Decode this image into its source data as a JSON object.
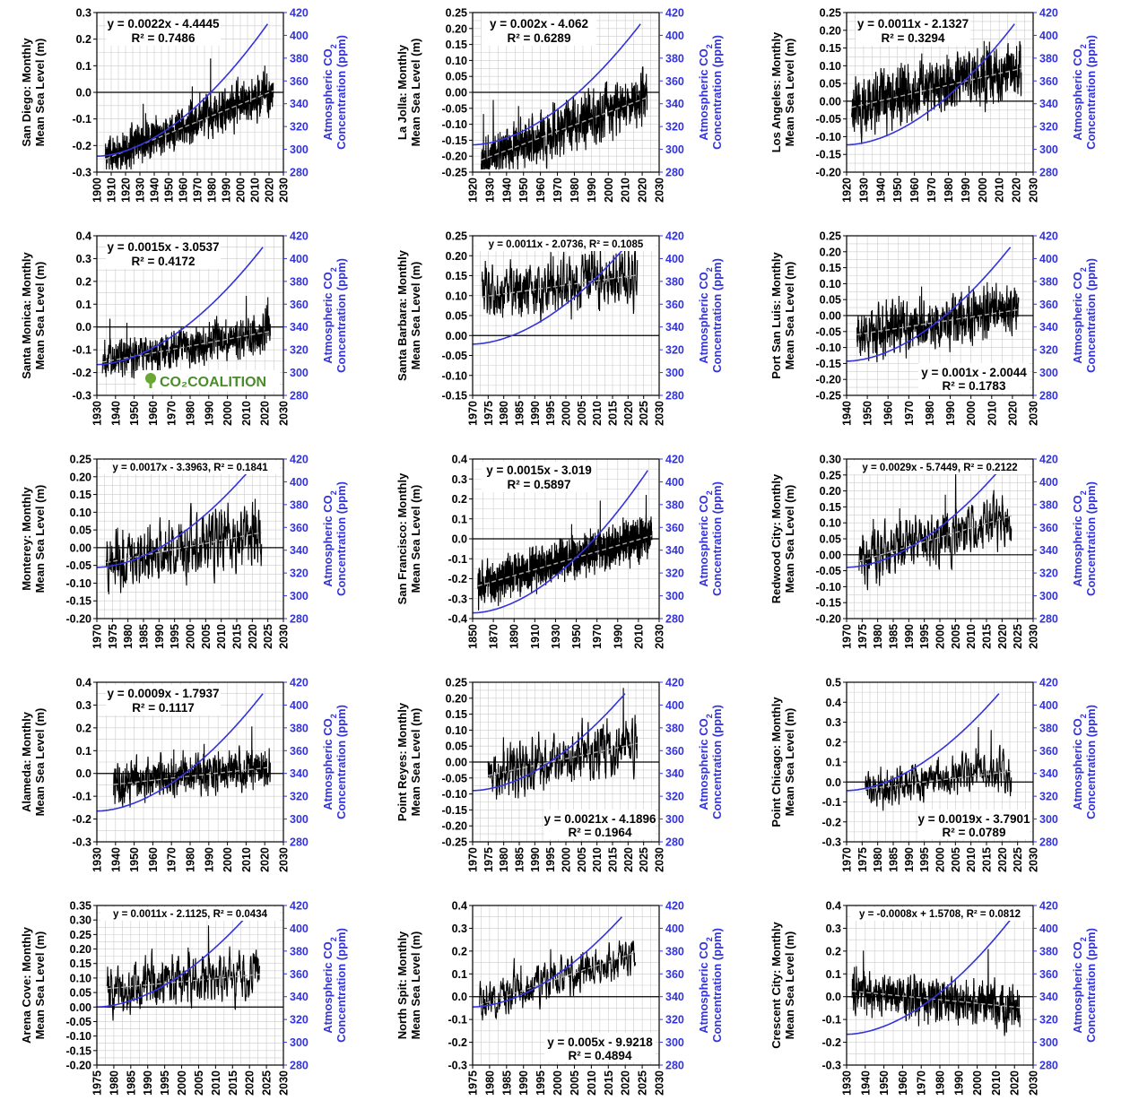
{
  "chart_data": [
    {
      "type": "line",
      "ylabel": "San Diego: Monthly\nMean Sea Level (m)",
      "y2label": "Atmospheric CO2\nConcentration (ppm)",
      "xlim": [
        1900,
        2030
      ],
      "xstep": 10,
      "ylim": [
        -0.3,
        0.3
      ],
      "ystep": 0.1,
      "ydec": 1,
      "y2lim": [
        280,
        420
      ],
      "y2step": 20,
      "data_x": [
        1906,
        2023
      ],
      "trend_slope": 0.0022,
      "trend_intercept": -4.4445,
      "equation": "y = 0.0022x - 4.4445",
      "r2": "R² = 0.7486",
      "eq_pos": "top-left",
      "co2_start": [
        1900,
        294
      ],
      "co2_end": [
        2019,
        410
      ],
      "noise": 0.045,
      "grid": true,
      "seed": 1
    },
    {
      "type": "line",
      "ylabel": "La Jolla: Monthly\nMean Sea Level (m)",
      "y2label": "Atmospheric CO2\nConcentration (ppm)",
      "xlim": [
        1920,
        2030
      ],
      "xstep": 10,
      "ylim": [
        -0.25,
        0.25
      ],
      "ystep": 0.05,
      "ydec": 2,
      "y2lim": [
        280,
        420
      ],
      "y2step": 20,
      "data_x": [
        1925,
        2023
      ],
      "trend_slope": 0.002,
      "trend_intercept": -4.062,
      "equation": "y = 0.002x - 4.062",
      "r2": "R² = 0.6289",
      "eq_pos": "top-left",
      "co2_start": [
        1920,
        304
      ],
      "co2_end": [
        2019,
        410
      ],
      "noise": 0.045,
      "grid": true,
      "seed": 2
    },
    {
      "type": "line",
      "ylabel": "Los Angeles: Monthly\nMean Sea Level (m)",
      "y2label": "Atmospheric CO2\nConcentration (ppm)",
      "xlim": [
        1920,
        2030
      ],
      "xstep": 10,
      "ylim": [
        -0.2,
        0.25
      ],
      "ystep": 0.05,
      "ydec": 2,
      "y2lim": [
        280,
        420
      ],
      "y2step": 20,
      "data_x": [
        1923,
        2023
      ],
      "trend_slope": 0.0011,
      "trend_intercept": -2.1327,
      "equation": "y = 0.0011x - 2.1327",
      "r2": "R² = 0.3294",
      "eq_pos": "top-left",
      "co2_start": [
        1920,
        304
      ],
      "co2_end": [
        2019,
        410
      ],
      "noise": 0.045,
      "grid": true,
      "seed": 3
    },
    {
      "type": "line",
      "ylabel": "Santa Monica: Monthly\nMean Sea Level (m)",
      "y2label": "Atmospheric CO2\nConcentration (ppm)",
      "xlim": [
        1930,
        2030
      ],
      "xstep": 10,
      "ylim": [
        -0.3,
        0.4
      ],
      "ystep": 0.1,
      "ydec": 1,
      "y2lim": [
        280,
        420
      ],
      "y2step": 20,
      "data_x": [
        1933,
        2023
      ],
      "trend_slope": 0.0015,
      "trend_intercept": -3.0537,
      "equation": "y = 0.0015x - 3.0537",
      "r2": "R² = 0.4172",
      "eq_pos": "top-left",
      "co2_start": [
        1930,
        307
      ],
      "co2_end": [
        2019,
        410
      ],
      "noise": 0.05,
      "grid": true,
      "seed": 4,
      "logo": "CO2COALITION"
    },
    {
      "type": "line",
      "ylabel": "Santa Barbara: Monthly\nMean Sea Level (m)",
      "y2label": "Atmospheric CO2\nConcentration (ppm)",
      "xlim": [
        1970,
        2030
      ],
      "xstep": 5,
      "ylim": [
        -0.15,
        0.25
      ],
      "ystep": 0.05,
      "ydec": 2,
      "y2lim": [
        280,
        420
      ],
      "y2step": 20,
      "data_x": [
        1973,
        2023
      ],
      "trend_slope": 0.0011,
      "trend_intercept": -2.0736,
      "equation": "y = 0.0011x - 2.0736, R² = 0.1085",
      "r2": "",
      "eq_pos": "top-wide",
      "co2_start": [
        1970,
        325
      ],
      "co2_end": [
        2019,
        410
      ],
      "noise": 0.045,
      "grid": true,
      "seed": 5
    },
    {
      "type": "line",
      "ylabel": "Port San Luis: Monthly\nMean Sea Level (m)",
      "y2label": "Atmospheric CO2\nConcentration (ppm)",
      "xlim": [
        1940,
        2030
      ],
      "xstep": 10,
      "ylim": [
        -0.25,
        0.25
      ],
      "ystep": 0.05,
      "ydec": 2,
      "y2lim": [
        280,
        420
      ],
      "y2step": 20,
      "data_x": [
        1945,
        2023
      ],
      "trend_slope": 0.001,
      "trend_intercept": -2.0044,
      "equation": "y = 0.001x - 2.0044",
      "r2": "R² = 0.1783",
      "eq_pos": "bottom-right",
      "co2_start": [
        1940,
        310
      ],
      "co2_end": [
        2019,
        410
      ],
      "noise": 0.045,
      "grid": true,
      "seed": 6
    },
    {
      "type": "line",
      "ylabel": "Monterey: Monthly\nMean Sea Level (m)",
      "y2label": "Atmospheric CO2\nConcentration (ppm)",
      "xlim": [
        1970,
        2030
      ],
      "xstep": 5,
      "ylim": [
        -0.2,
        0.25
      ],
      "ystep": 0.05,
      "ydec": 2,
      "y2lim": [
        280,
        420
      ],
      "y2step": 20,
      "data_x": [
        1973,
        2023
      ],
      "trend_slope": 0.0017,
      "trend_intercept": -3.3963,
      "equation": "y = 0.0017x - 3.3963, R² = 0.1841",
      "r2": "",
      "eq_pos": "top-wide",
      "co2_start": [
        1970,
        325
      ],
      "co2_end": [
        2019,
        410
      ],
      "noise": 0.05,
      "grid": true,
      "seed": 7
    },
    {
      "type": "line",
      "ylabel": "San Francisco: Monthly\nMean Sea Level (m)",
      "y2label": "Atmospheric CO2\nConcentration (ppm)",
      "xlim": [
        1850,
        2030
      ],
      "xstep": 20,
      "ylim": [
        -0.4,
        0.4
      ],
      "ystep": 0.1,
      "ydec": 1,
      "y2lim": [
        280,
        420
      ],
      "y2step": 20,
      "data_x": [
        1855,
        2023
      ],
      "trend_slope": 0.0015,
      "trend_intercept": -3.019,
      "equation": "y = 0.0015x - 3.019",
      "r2": "R² = 0.5897",
      "eq_pos": "top-left",
      "co2_start": [
        1850,
        285
      ],
      "co2_end": [
        2019,
        410
      ],
      "noise": 0.06,
      "grid": true,
      "seed": 8
    },
    {
      "type": "line",
      "ylabel": "Redwood City: Monthly\nMean Sea Level (m)",
      "y2label": "Atmospheric CO2\nConcentration (ppm)",
      "xlim": [
        1970,
        2030
      ],
      "xstep": 5,
      "ylim": [
        -0.2,
        0.3
      ],
      "ystep": 0.05,
      "ydec": 2,
      "y2lim": [
        280,
        420
      ],
      "y2step": 20,
      "data_x": [
        1974,
        2023
      ],
      "trend_slope": 0.0029,
      "trend_intercept": -5.7449,
      "equation": "y = 0.0029x - 5.7449, R² = 0.2122",
      "r2": "",
      "eq_pos": "top-wide",
      "co2_start": [
        1970,
        325
      ],
      "co2_end": [
        2019,
        410
      ],
      "noise": 0.05,
      "grid": true,
      "seed": 9
    },
    {
      "type": "line",
      "ylabel": "Alameda: Monthly\nMean Sea Level (m)",
      "y2label": "Atmospheric CO2\nConcentration (ppm)",
      "xlim": [
        1930,
        2030
      ],
      "xstep": 10,
      "ylim": [
        -0.3,
        0.4
      ],
      "ystep": 0.1,
      "ydec": 1,
      "y2lim": [
        280,
        420
      ],
      "y2step": 20,
      "data_x": [
        1939,
        2023
      ],
      "trend_slope": 0.0009,
      "trend_intercept": -1.7937,
      "equation": "y = 0.0009x - 1.7937",
      "r2": "R² = 0.1117",
      "eq_pos": "top-left",
      "co2_start": [
        1930,
        307
      ],
      "co2_end": [
        2019,
        410
      ],
      "noise": 0.05,
      "grid": true,
      "seed": 10
    },
    {
      "type": "line",
      "ylabel": "Point Reyes: Monthly\nMean Sea Level (m)",
      "y2label": "Atmospheric CO2\nConcentration (ppm)",
      "xlim": [
        1970,
        2030
      ],
      "xstep": 5,
      "ylim": [
        -0.25,
        0.25
      ],
      "ystep": 0.05,
      "ydec": 2,
      "y2lim": [
        280,
        420
      ],
      "y2step": 20,
      "data_x": [
        1975,
        2023
      ],
      "trend_slope": 0.0021,
      "trend_intercept": -4.1896,
      "equation": "y = 0.0021x - 4.1896",
      "r2": "R² = 0.1964",
      "eq_pos": "bottom-right",
      "co2_start": [
        1970,
        325
      ],
      "co2_end": [
        2019,
        410
      ],
      "noise": 0.05,
      "grid": true,
      "seed": 11
    },
    {
      "type": "line",
      "ylabel": "Point Chicago: Monthly\nMean Sea Level (m)",
      "y2label": "Atmospheric CO2\nConcentration (ppm)",
      "xlim": [
        1970,
        2030
      ],
      "xstep": 5,
      "ylim": [
        -0.3,
        0.5
      ],
      "ystep": 0.1,
      "ydec": 1,
      "y2lim": [
        280,
        420
      ],
      "y2step": 20,
      "data_x": [
        1976,
        2023
      ],
      "trend_slope": 0.0019,
      "trend_intercept": -3.7901,
      "equation": "y = 0.0019x - 3.7901",
      "r2": "R² = 0.0789",
      "eq_pos": "bottom-right",
      "co2_start": [
        1970,
        325
      ],
      "co2_end": [
        2019,
        410
      ],
      "noise": 0.06,
      "grid": true,
      "seed": 12
    },
    {
      "type": "line",
      "ylabel": "Arena Cove: Monthly\nMean Sea Level (m)",
      "y2label": "Atmospheric CO2\nConcentration (ppm)",
      "xlim": [
        1975,
        2030
      ],
      "xstep": 5,
      "ylim": [
        -0.2,
        0.35
      ],
      "ystep": 0.05,
      "ydec": 2,
      "y2lim": [
        280,
        420
      ],
      "y2step": 20,
      "data_x": [
        1978,
        2023
      ],
      "trend_slope": 0.0011,
      "trend_intercept": -2.1125,
      "equation": "y = 0.0011x - 2.1125, R² = 0.0434",
      "r2": "",
      "eq_pos": "top-wide",
      "co2_start": [
        1975,
        331
      ],
      "co2_end": [
        2019,
        410
      ],
      "noise": 0.055,
      "grid": true,
      "seed": 13
    },
    {
      "type": "line",
      "ylabel": "North Spit: Monthly\nMean Sea Level (m)",
      "y2label": "Atmospheric CO2\nConcentration (ppm)",
      "xlim": [
        1975,
        2030
      ],
      "xstep": 5,
      "ylim": [
        -0.3,
        0.4
      ],
      "ystep": 0.1,
      "ydec": 1,
      "y2lim": [
        280,
        420
      ],
      "y2step": 20,
      "data_x": [
        1977,
        2023
      ],
      "trend_slope": 0.005,
      "trend_intercept": -9.9218,
      "equation": "y = 0.005x - 9.9218",
      "r2": "R² = 0.4894",
      "eq_pos": "bottom-right",
      "co2_start": [
        1975,
        331
      ],
      "co2_end": [
        2019,
        410
      ],
      "noise": 0.05,
      "grid": true,
      "seed": 14
    },
    {
      "type": "line",
      "ylabel": "Crescent City: Monthly\nMean Sea Level (m)",
      "y2label": "Atmospheric CO2\nConcentration (ppm)",
      "xlim": [
        1930,
        2030
      ],
      "xstep": 10,
      "ylim": [
        -0.3,
        0.4
      ],
      "ystep": 0.1,
      "ydec": 1,
      "y2lim": [
        280,
        420
      ],
      "y2step": 20,
      "data_x": [
        1933,
        2023
      ],
      "trend_slope": -0.0008,
      "trend_intercept": 1.5708,
      "equation": "y = -0.0008x + 1.5708, R² = 0.0812",
      "r2": "",
      "eq_pos": "top-wide",
      "co2_start": [
        1930,
        307
      ],
      "co2_end": [
        2019,
        410
      ],
      "noise": 0.055,
      "grid": true,
      "seed": 15
    }
  ],
  "colors": {
    "sea_level": "#000000",
    "co2": "#3333dd",
    "trend": "#aaaaaa",
    "grid": "#cccccc"
  }
}
